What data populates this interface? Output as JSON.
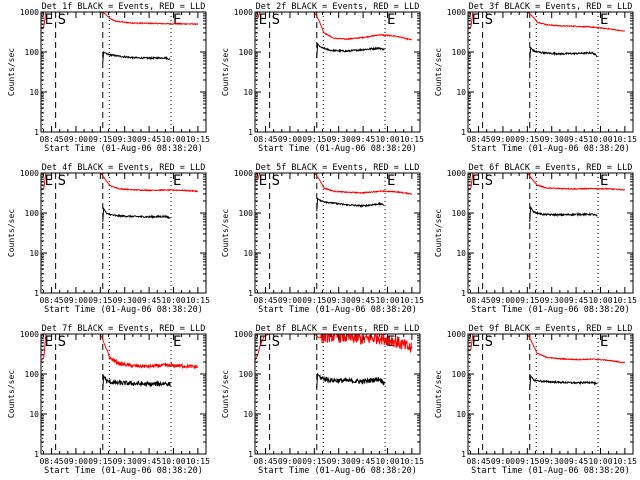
{
  "chart_data": {
    "type": "line",
    "layout": "grid-3x3",
    "x_tick_labels": [
      "08:45",
      "09:00",
      "09:15",
      "09:30",
      "09:45",
      "10:00",
      "10:15"
    ],
    "x_ticks_minutes": [
      0,
      15,
      30,
      45,
      60,
      75,
      90
    ],
    "xlim_minutes": [
      -6.5,
      95
    ],
    "xlabel": "Start Time (01-Aug-06 08:38:20)",
    "ylabel": "Counts/sec",
    "y_scale": "log",
    "ylim": [
      1,
      1000
    ],
    "y_tick_labels": [
      "1",
      "10",
      "100",
      "1000"
    ],
    "markers": [
      {
        "label": "E",
        "time": -5.5,
        "style": "dotted"
      },
      {
        "label": "S",
        "time": 2.5,
        "style": "dashed"
      },
      {
        "label": "",
        "time": 31.5,
        "style": "dashed"
      },
      {
        "label": "",
        "time": 35.5,
        "style": "dotted"
      },
      {
        "label": "E",
        "time": 73.5,
        "style": "dotted"
      }
    ],
    "series_legend": {
      "black": "Events",
      "red": "LLD"
    },
    "panels": [
      {
        "title": "Det 1f BLACK = Events, RED = LLD",
        "red": [
          [
            -6.5,
            400
          ],
          [
            -4.8,
            420
          ],
          [
            -3.5,
            1000
          ],
          [
            2,
            1000
          ],
          [
            30,
            1000
          ],
          [
            33,
            900
          ],
          [
            36,
            680
          ],
          [
            40,
            580
          ],
          [
            50,
            530
          ],
          [
            60,
            520
          ],
          [
            70,
            510
          ],
          [
            80,
            505
          ],
          [
            90,
            500
          ]
        ],
        "black": [
          [
            31.5,
            55
          ],
          [
            32,
            100
          ],
          [
            34,
            88
          ],
          [
            40,
            80
          ],
          [
            50,
            72
          ],
          [
            60,
            70
          ],
          [
            70,
            72
          ],
          [
            73,
            65
          ]
        ]
      },
      {
        "title": "Det 2f BLACK = Events, RED = LLD",
        "red": [
          [
            -6.5,
            650
          ],
          [
            -4.8,
            700
          ],
          [
            -3.5,
            1000
          ],
          [
            2,
            1000
          ],
          [
            30,
            1000
          ],
          [
            33,
            600
          ],
          [
            36,
            300
          ],
          [
            42,
            220
          ],
          [
            50,
            210
          ],
          [
            60,
            230
          ],
          [
            70,
            270
          ],
          [
            80,
            250
          ],
          [
            90,
            200
          ]
        ],
        "black": [
          [
            31.5,
            70
          ],
          [
            32,
            160
          ],
          [
            34,
            130
          ],
          [
            40,
            110
          ],
          [
            50,
            105
          ],
          [
            60,
            115
          ],
          [
            70,
            125
          ],
          [
            73,
            115
          ]
        ]
      },
      {
        "title": "Det 3f BLACK = Events, RED = LLD",
        "red": [
          [
            -6.5,
            380
          ],
          [
            -4.8,
            400
          ],
          [
            -3.5,
            1000
          ],
          [
            2,
            1000
          ],
          [
            30,
            1000
          ],
          [
            33,
            800
          ],
          [
            36,
            560
          ],
          [
            42,
            480
          ],
          [
            50,
            450
          ],
          [
            60,
            440
          ],
          [
            70,
            420
          ],
          [
            80,
            380
          ],
          [
            90,
            330
          ]
        ],
        "black": [
          [
            31.5,
            60
          ],
          [
            32,
            130
          ],
          [
            34,
            105
          ],
          [
            40,
            95
          ],
          [
            50,
            90
          ],
          [
            60,
            92
          ],
          [
            70,
            95
          ],
          [
            73,
            80
          ]
        ]
      },
      {
        "title": "Det 4f BLACK = Events, RED = LLD",
        "red": [
          [
            -6.5,
            380
          ],
          [
            -4.8,
            400
          ],
          [
            -3.5,
            1000
          ],
          [
            2,
            1000
          ],
          [
            30,
            1000
          ],
          [
            33,
            700
          ],
          [
            36,
            480
          ],
          [
            42,
            400
          ],
          [
            50,
            380
          ],
          [
            60,
            370
          ],
          [
            70,
            375
          ],
          [
            80,
            370
          ],
          [
            90,
            350
          ]
        ],
        "black": [
          [
            31.5,
            60
          ],
          [
            32,
            130
          ],
          [
            34,
            95
          ],
          [
            40,
            85
          ],
          [
            50,
            82
          ],
          [
            60,
            80
          ],
          [
            70,
            82
          ],
          [
            73,
            75
          ]
        ]
      },
      {
        "title": "Det 5f BLACK = Events, RED = LLD",
        "red": [
          [
            -6.5,
            650
          ],
          [
            -4.8,
            700
          ],
          [
            -3.5,
            1000
          ],
          [
            2,
            1000
          ],
          [
            30,
            1000
          ],
          [
            33,
            700
          ],
          [
            36,
            420
          ],
          [
            42,
            350
          ],
          [
            50,
            330
          ],
          [
            60,
            320
          ],
          [
            70,
            350
          ],
          [
            80,
            340
          ],
          [
            90,
            300
          ]
        ],
        "black": [
          [
            31.5,
            110
          ],
          [
            32,
            230
          ],
          [
            34,
            200
          ],
          [
            40,
            180
          ],
          [
            50,
            160
          ],
          [
            60,
            150
          ],
          [
            70,
            170
          ],
          [
            73,
            160
          ]
        ]
      },
      {
        "title": "Det 6f BLACK = Events, RED = LLD",
        "red": [
          [
            -6.5,
            380
          ],
          [
            -4.8,
            400
          ],
          [
            -3.5,
            1000
          ],
          [
            2,
            1000
          ],
          [
            30,
            1000
          ],
          [
            33,
            700
          ],
          [
            36,
            500
          ],
          [
            42,
            420
          ],
          [
            50,
            410
          ],
          [
            60,
            400
          ],
          [
            70,
            410
          ],
          [
            80,
            400
          ],
          [
            90,
            380
          ]
        ],
        "black": [
          [
            31.5,
            60
          ],
          [
            32,
            140
          ],
          [
            34,
            105
          ],
          [
            40,
            92
          ],
          [
            50,
            90
          ],
          [
            60,
            92
          ],
          [
            70,
            93
          ],
          [
            73,
            85
          ]
        ]
      },
      {
        "title": "Det 7f BLACK = Events, RED = LLD",
        "red": [
          [
            -6.5,
            220
          ],
          [
            -4.8,
            250
          ],
          [
            -3.5,
            1000
          ],
          [
            2,
            1000
          ],
          [
            30,
            1000
          ],
          [
            33,
            500
          ],
          [
            36,
            250
          ],
          [
            42,
            180
          ],
          [
            50,
            160
          ],
          [
            60,
            155
          ],
          [
            70,
            165
          ],
          [
            80,
            160
          ],
          [
            90,
            150
          ]
        ],
        "black": [
          [
            31.5,
            40
          ],
          [
            32,
            90
          ],
          [
            34,
            65
          ],
          [
            40,
            60
          ],
          [
            50,
            58
          ],
          [
            60,
            55
          ],
          [
            70,
            58
          ],
          [
            73,
            55
          ]
        ]
      },
      {
        "title": "Det 8f BLACK = Events, RED = LLD",
        "red": [
          [
            -6.5,
            220
          ],
          [
            -4.8,
            300
          ],
          [
            -3.5,
            500
          ],
          [
            -1,
            850
          ],
          [
            2,
            1000
          ],
          [
            30,
            1000
          ],
          [
            33,
            800
          ],
          [
            40,
            900
          ],
          [
            50,
            850
          ],
          [
            60,
            750
          ],
          [
            70,
            820
          ],
          [
            80,
            650
          ],
          [
            90,
            420
          ]
        ],
        "black": [
          [
            31.5,
            45
          ],
          [
            32,
            100
          ],
          [
            34,
            80
          ],
          [
            40,
            70
          ],
          [
            50,
            68
          ],
          [
            60,
            65
          ],
          [
            70,
            75
          ],
          [
            73,
            60
          ]
        ]
      },
      {
        "title": "Det 9f BLACK = Events, RED = LLD",
        "red": [
          [
            -6.5,
            380
          ],
          [
            -4.8,
            400
          ],
          [
            -3.5,
            1000
          ],
          [
            2,
            1000
          ],
          [
            30,
            1000
          ],
          [
            33,
            600
          ],
          [
            36,
            330
          ],
          [
            42,
            260
          ],
          [
            50,
            240
          ],
          [
            60,
            230
          ],
          [
            70,
            235
          ],
          [
            80,
            220
          ],
          [
            90,
            190
          ]
        ],
        "black": [
          [
            31.5,
            40
          ],
          [
            32,
            90
          ],
          [
            34,
            70
          ],
          [
            40,
            65
          ],
          [
            50,
            62
          ],
          [
            60,
            60
          ],
          [
            70,
            62
          ],
          [
            73,
            55
          ]
        ]
      }
    ]
  },
  "colors": {
    "events": "#000000",
    "lld": "#ff0000",
    "axes": "#000000",
    "background": "#ffffff"
  }
}
